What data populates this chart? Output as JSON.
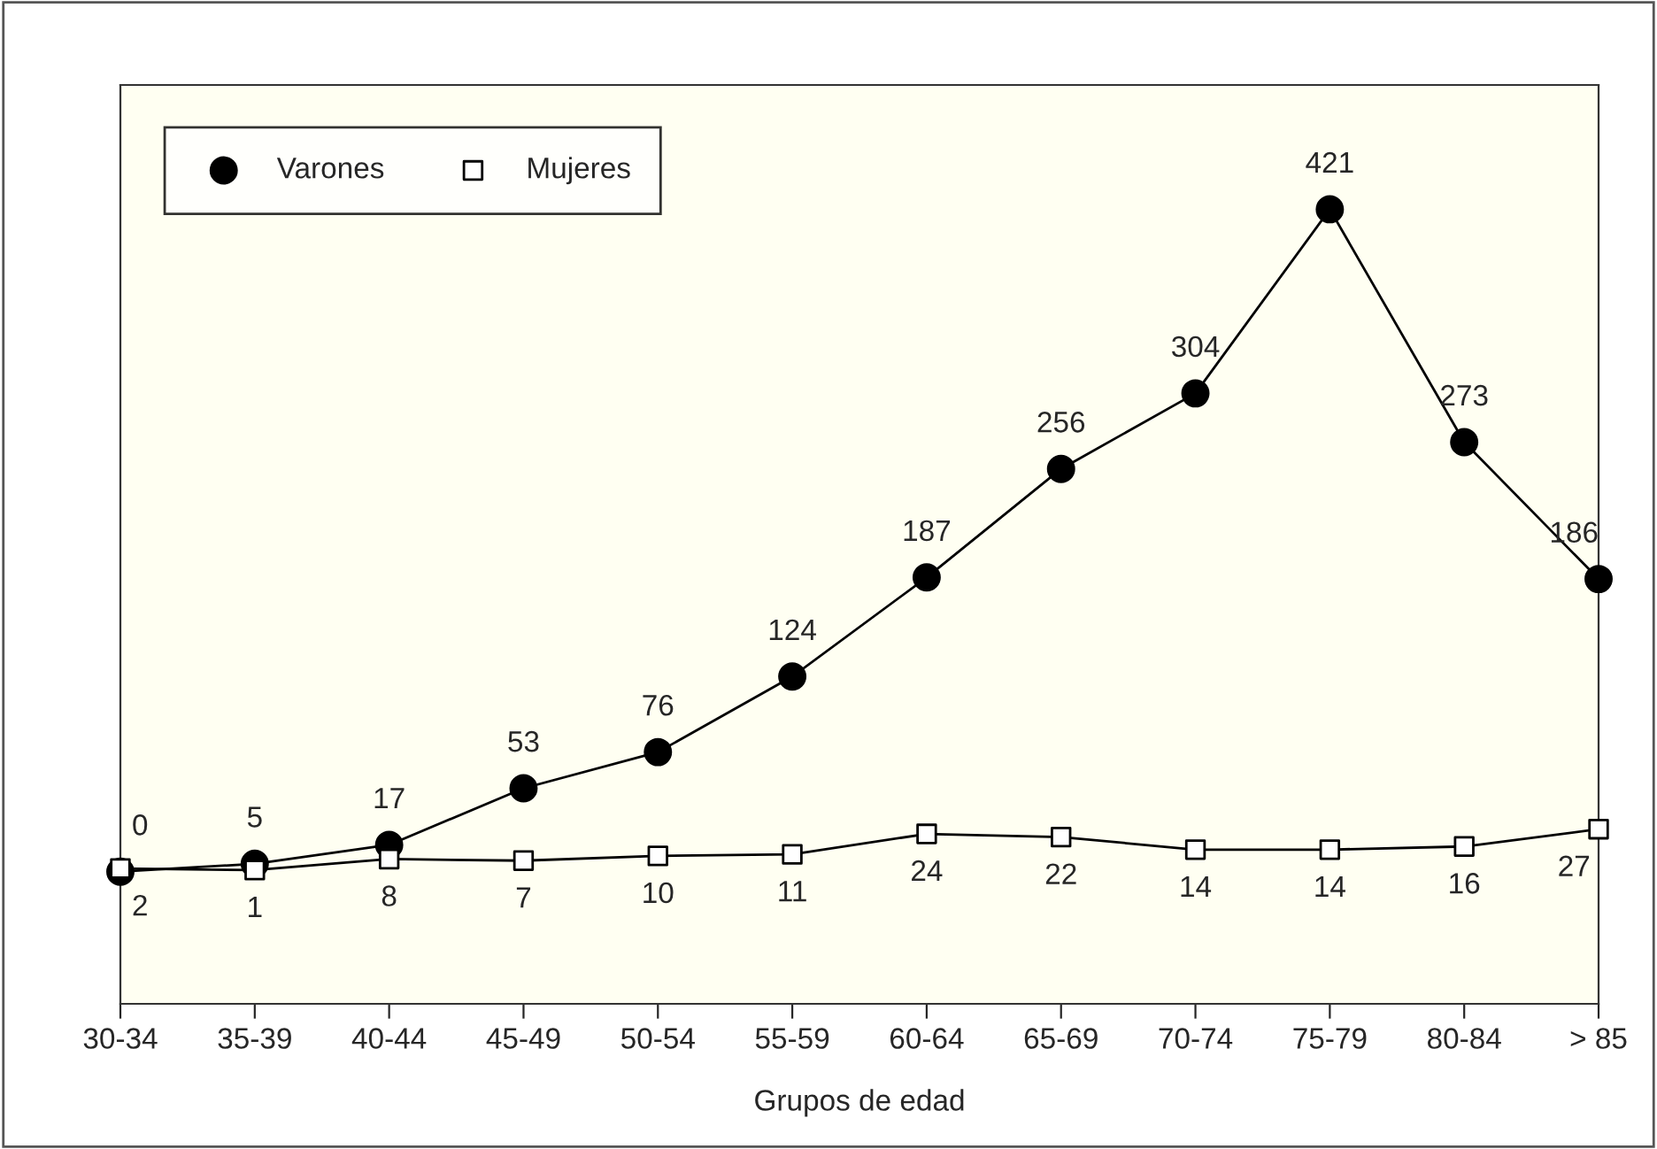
{
  "chart_data": {
    "type": "line",
    "xlabel": "Grupos de edad",
    "categories": [
      "30-34",
      "35-39",
      "40-44",
      "45-49",
      "50-54",
      "55-59",
      "60-64",
      "65-69",
      "70-74",
      "75-79",
      "80-84",
      "> 85"
    ],
    "series": [
      {
        "name": "Varones",
        "color": "#000000",
        "marker": "circle",
        "values": [
          0,
          5,
          17,
          53,
          76,
          124,
          187,
          256,
          304,
          421,
          273,
          186
        ]
      },
      {
        "name": "Mujeres",
        "color": "#000000",
        "marker": "square",
        "values": [
          2,
          1,
          8,
          7,
          10,
          11,
          24,
          22,
          14,
          14,
          16,
          27
        ]
      }
    ],
    "ylim": [
      -84,
      500
    ],
    "tick_labels": "x",
    "data_labels": true,
    "grid": false,
    "legend": "top left"
  }
}
